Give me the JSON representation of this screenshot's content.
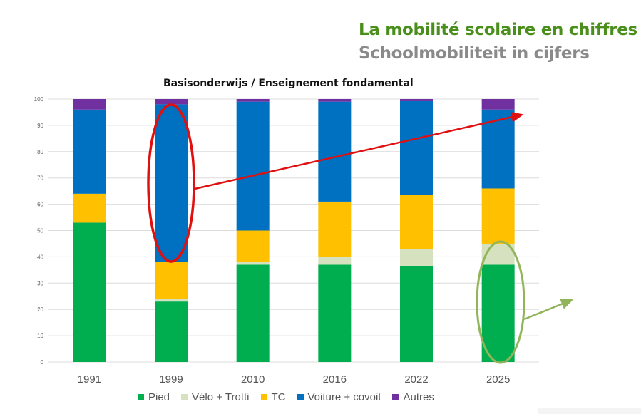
{
  "header": {
    "title": "La mobilité scolaire en chiffres",
    "subtitle": "Schoolmobiliteit in cijfers",
    "title_color": "#4a8f1c",
    "subtitle_color": "#8a8a8a"
  },
  "chart_data": {
    "type": "bar",
    "stacked": true,
    "title": "Basisonderwijs / Enseignement fondamental",
    "xlabel": "",
    "ylabel": "",
    "ylim": [
      0,
      100
    ],
    "yticks": [
      0,
      10,
      20,
      30,
      40,
      50,
      60,
      70,
      80,
      90,
      100
    ],
    "grid": true,
    "legend_position": "bottom",
    "categories": [
      "1991",
      "1999",
      "2010",
      "2016",
      "2022",
      "2025"
    ],
    "series": [
      {
        "name": "Pied",
        "color": "#00ad4f",
        "values": [
          53,
          23,
          37,
          37,
          36.5,
          37
        ]
      },
      {
        "name": "Vélo + Trotti",
        "color": "#d6e2bf",
        "values": [
          0,
          1,
          1,
          3,
          6.5,
          8
        ]
      },
      {
        "name": "TC",
        "color": "#ffc000",
        "values": [
          11,
          14,
          12,
          21,
          20.5,
          21
        ]
      },
      {
        "name": "Voiture + covoit",
        "color": "#0070c0",
        "values": [
          32,
          60,
          49,
          38,
          35.7,
          30
        ]
      },
      {
        "name": "Autres",
        "color": "#7030a0",
        "values": [
          4,
          2,
          1,
          1,
          0.8,
          4
        ]
      }
    ],
    "annotations": [
      {
        "type": "ellipse",
        "target_category": "1999",
        "target_series": "Voiture + covoit",
        "color": "#e01010"
      },
      {
        "type": "arrow",
        "direction": "up-right",
        "from_category": "1999",
        "color": "#e01010"
      },
      {
        "type": "ellipse",
        "target_category": "2025",
        "target_series": "Pied + Vélo + Trotti",
        "color": "#92b45a"
      },
      {
        "type": "arrow",
        "direction": "up-right",
        "from_category": "2025",
        "color": "#92b45a"
      }
    ]
  }
}
